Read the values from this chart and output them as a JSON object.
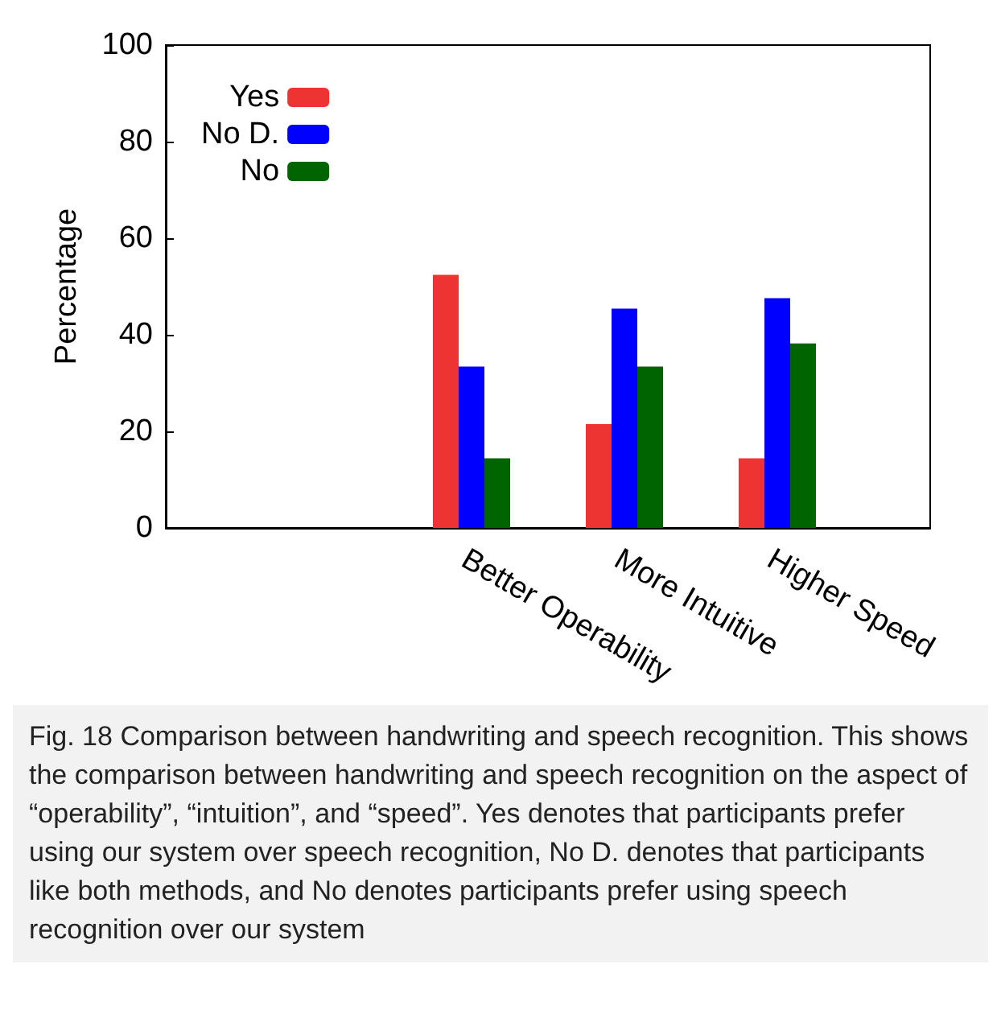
{
  "chart_data": {
    "type": "bar",
    "ylabel": "Percentage",
    "categories": [
      null,
      null,
      "Better Operability",
      "More Intuitive",
      "Higher Speed",
      null
    ],
    "series": [
      {
        "name": "Yes",
        "color": "#ee3333",
        "values": [
          null,
          null,
          52.4,
          21.5,
          14.4,
          null
        ]
      },
      {
        "name": "No D.",
        "color": "#0000ff",
        "values": [
          null,
          null,
          33.4,
          45.4,
          47.6,
          null
        ]
      },
      {
        "name": "No",
        "color": "#006400",
        "values": [
          null,
          null,
          14.4,
          33.4,
          38.2,
          null
        ]
      }
    ],
    "ylim": [
      0,
      100
    ],
    "yticks": [
      0,
      20,
      40,
      60,
      80,
      100
    ],
    "grid": false,
    "legend": "top left",
    "annotations": [
      "Fig. 18 Comparison between handwriting and speech recognition. This shows the comparison between handwriting and speech recognition on the aspect of “operability”, “intuition”, and “speed”. Yes denotes that participants prefer using our system over speech recognition, No D. denotes that participants like both methods, and No denotes participants prefer using speech recognition over our system"
    ]
  }
}
